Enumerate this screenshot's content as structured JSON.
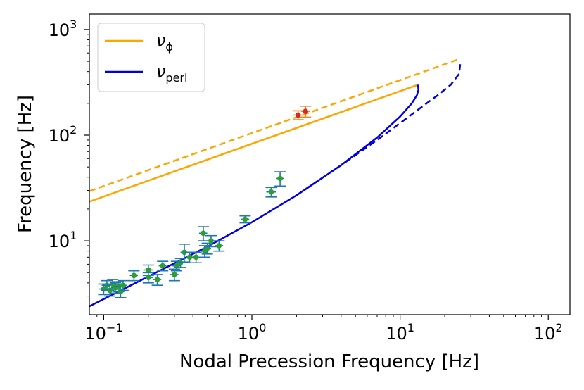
{
  "chart_data": {
    "type": "scatter",
    "xlabel": "Nodal Precession Frequency [Hz]",
    "ylabel": "Frequency [Hz]",
    "xscale": "log",
    "yscale": "log",
    "xlim": [
      0.08,
      140
    ],
    "ylim": [
      2.0,
      1400
    ],
    "x_ticks": [
      {
        "value": 0.1,
        "base": "10",
        "exp": "−1"
      },
      {
        "value": 1,
        "base": "10",
        "exp": "0"
      },
      {
        "value": 10,
        "base": "10",
        "exp": "1"
      },
      {
        "value": 100,
        "base": "10",
        "exp": "2"
      }
    ],
    "y_ticks": [
      {
        "value": 10,
        "base": "10",
        "exp": "1"
      },
      {
        "value": 100,
        "base": "10",
        "exp": "2"
      },
      {
        "value": 1000,
        "base": "10",
        "exp": "3"
      }
    ],
    "legend": {
      "location": "upper-left",
      "entries": [
        {
          "name": "nu-phi",
          "symbol": "ν",
          "sub": "ϕ",
          "color": "#FFA500"
        },
        {
          "name": "nu-peri",
          "symbol": "ν",
          "sub": "peri",
          "color": "#0000DD"
        }
      ]
    },
    "series": [
      {
        "name": "nu_phi_solid",
        "kind": "line",
        "style": "solid",
        "color": "#FFA500",
        "x": [
          0.08,
          13.2
        ],
        "y": [
          23.5,
          300
        ]
      },
      {
        "name": "nu_phi_dashed",
        "kind": "line",
        "style": "dashed",
        "color": "#FFA500",
        "x": [
          0.08,
          25.5
        ],
        "y": [
          29.5,
          530
        ]
      },
      {
        "name": "nu_peri_solid",
        "kind": "line",
        "style": "solid",
        "color": "#0000DD",
        "x": [
          0.08,
          0.2,
          0.5,
          1.0,
          2.0,
          4.0,
          7.0,
          10.0,
          12.0,
          13.0,
          13.3,
          13.2
        ],
        "y": [
          2.4,
          4.6,
          8.8,
          15,
          27,
          52,
          95,
          150,
          200,
          240,
          270,
          300
        ]
      },
      {
        "name": "nu_peri_dashed",
        "kind": "line",
        "style": "dashed",
        "color": "#0000DD",
        "x": [
          2.0,
          4.0,
          7.0,
          10.0,
          14.0,
          18.0,
          22.0,
          25.0,
          25.5
        ],
        "y": [
          27,
          52,
          90,
          130,
          185,
          240,
          300,
          380,
          480
        ]
      },
      {
        "name": "qpo_data",
        "kind": "errorbar",
        "color": "#2CA02C",
        "ecolor": "#1F77B4",
        "points": [
          {
            "x": 0.1,
            "y": 3.5,
            "yerr": 0.4,
            "xerr": 0.008
          },
          {
            "x": 0.105,
            "y": 3.8,
            "yerr": 0.4,
            "xerr": 0.008
          },
          {
            "x": 0.11,
            "y": 3.4,
            "yerr": 0.4,
            "xerr": 0.008
          },
          {
            "x": 0.115,
            "y": 3.9,
            "yerr": 0.4,
            "xerr": 0.008
          },
          {
            "x": 0.12,
            "y": 3.6,
            "yerr": 0.4,
            "xerr": 0.008
          },
          {
            "x": 0.125,
            "y": 3.7,
            "yerr": 0.4,
            "xerr": 0.008
          },
          {
            "x": 0.13,
            "y": 3.3,
            "yerr": 0.4,
            "xerr": 0.008
          },
          {
            "x": 0.135,
            "y": 3.8,
            "yerr": 0.4,
            "xerr": 0.008
          },
          {
            "x": 0.16,
            "y": 4.7,
            "yerr": 0.5,
            "xerr": 0.01
          },
          {
            "x": 0.2,
            "y": 5.3,
            "yerr": 0.6,
            "xerr": 0.015
          },
          {
            "x": 0.2,
            "y": 4.5,
            "yerr": 0.5,
            "xerr": 0.015
          },
          {
            "x": 0.23,
            "y": 4.3,
            "yerr": 0.5,
            "xerr": 0.015
          },
          {
            "x": 0.25,
            "y": 5.8,
            "yerr": 0.6,
            "xerr": 0.015
          },
          {
            "x": 0.3,
            "y": 4.8,
            "yerr": 0.6,
            "xerr": 0.02
          },
          {
            "x": 0.31,
            "y": 5.8,
            "yerr": 0.6,
            "xerr": 0.02
          },
          {
            "x": 0.33,
            "y": 6.2,
            "yerr": 0.6,
            "xerr": 0.02
          },
          {
            "x": 0.35,
            "y": 7.8,
            "yerr": 1.5,
            "xerr": 0.02
          },
          {
            "x": 0.38,
            "y": 7.0,
            "yerr": 0.8,
            "xerr": 0.02
          },
          {
            "x": 0.42,
            "y": 7.0,
            "yerr": 0.8,
            "xerr": 0.02
          },
          {
            "x": 0.47,
            "y": 11.8,
            "yerr": 1.8,
            "xerr": 0.03
          },
          {
            "x": 0.48,
            "y": 8.0,
            "yerr": 1.0,
            "xerr": 0.03
          },
          {
            "x": 0.5,
            "y": 8.5,
            "yerr": 1.0,
            "xerr": 0.03
          },
          {
            "x": 0.53,
            "y": 10.0,
            "yerr": 1.2,
            "xerr": 0.03
          },
          {
            "x": 0.6,
            "y": 9.0,
            "yerr": 1.0,
            "xerr": 0.04
          },
          {
            "x": 0.9,
            "y": 16.0,
            "yerr": 1.2,
            "xerr": 0.06
          },
          {
            "x": 1.35,
            "y": 29.0,
            "yerr": 3.0,
            "xerr": 0.1
          },
          {
            "x": 1.55,
            "y": 39.0,
            "yerr": 6.0,
            "xerr": 0.1
          }
        ]
      },
      {
        "name": "qpo_upper",
        "kind": "errorbar",
        "color": "#D62728",
        "ecolor": "#FF7F0E",
        "points": [
          {
            "x": 2.05,
            "y": 155,
            "yerr": 15,
            "xerr": 0.15
          },
          {
            "x": 2.3,
            "y": 168,
            "yerr": 20,
            "xerr": 0.15
          }
        ]
      }
    ]
  }
}
